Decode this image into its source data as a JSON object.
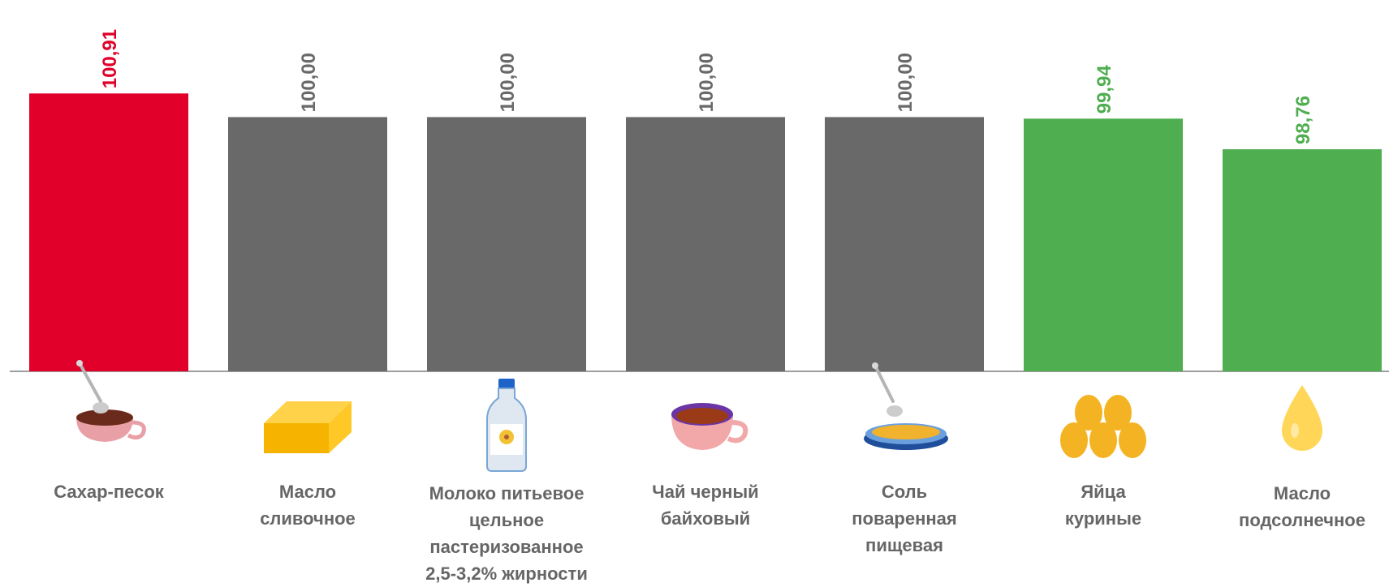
{
  "colors": {
    "up": "#e0002a",
    "flat": "#696969",
    "down": "#4fae4f",
    "axis": "#9e9e9e",
    "label": "#666666"
  },
  "chart_data": {
    "type": "bar",
    "categories": [
      [
        "Сахар-песок"
      ],
      [
        "Масло",
        "сливочное"
      ],
      [
        "Молоко питьевое",
        "цельное",
        "пастеризованное",
        "2,5-3,2% жирности"
      ],
      [
        "Чай черный",
        "байховый"
      ],
      [
        "Соль",
        "поваренная",
        "пищевая"
      ],
      [
        "Яйца",
        "куриные"
      ],
      [
        "Масло",
        "подсолнечное"
      ]
    ],
    "values": [
      100.91,
      100.0,
      100.0,
      100.0,
      100.0,
      99.94,
      98.76
    ],
    "value_labels": [
      "100,91",
      "100,00",
      "100,00",
      "100,00",
      "100,00",
      "99,94",
      "98,76"
    ],
    "bar_colors": [
      "up",
      "flat",
      "flat",
      "flat",
      "flat",
      "down",
      "down"
    ],
    "icons": [
      "sugar-cup-icon",
      "butter-icon",
      "milk-bottle-icon",
      "tea-cup-icon",
      "salt-plate-icon",
      "eggs-icon",
      "oil-drop-icon"
    ],
    "baseline": 90.2
  }
}
